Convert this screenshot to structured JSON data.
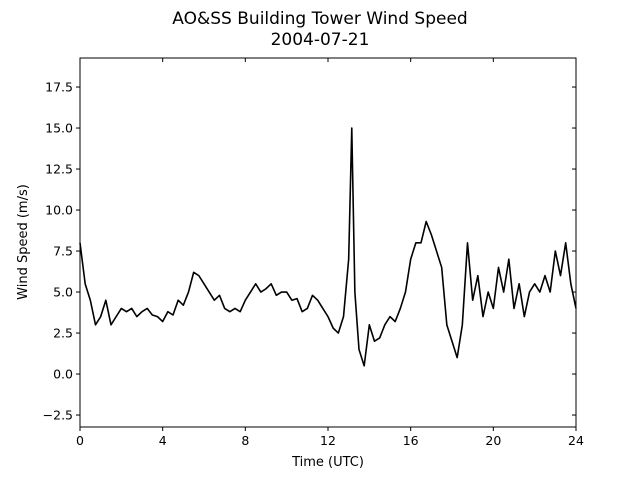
{
  "chart_data": {
    "type": "line",
    "title": "AO&SS Building Tower Wind Speed",
    "subtitle": "2004-07-21",
    "x_label": "Time (UTC)",
    "y_label": "Wind Speed (m/s)",
    "xlim": [
      0,
      24
    ],
    "xticks": [
      0,
      4,
      8,
      12,
      16,
      20,
      24
    ],
    "ylim": [
      -3.23,
      19.27
    ],
    "yticks": [
      {
        "value": -2.5,
        "label": "−2.5"
      },
      {
        "value": 0,
        "label": "0.0"
      },
      {
        "value": 2.5,
        "label": "2.5"
      },
      {
        "value": 5,
        "label": "5.0"
      },
      {
        "value": 7.5,
        "label": "7.5"
      },
      {
        "value": 10,
        "label": "10.0"
      },
      {
        "value": 12.5,
        "label": "12.5"
      },
      {
        "value": 15,
        "label": "15.0"
      },
      {
        "value": 17.5,
        "label": "17.5"
      }
    ],
    "grid": false,
    "x": [
      0,
      0.25,
      0.5,
      0.75,
      1.0,
      1.25,
      1.5,
      1.75,
      2.0,
      2.25,
      2.5,
      2.75,
      3.0,
      3.25,
      3.5,
      3.75,
      4.0,
      4.25,
      4.5,
      4.75,
      5.0,
      5.25,
      5.5,
      5.75,
      6.0,
      6.25,
      6.5,
      6.75,
      7.0,
      7.25,
      7.5,
      7.75,
      8.0,
      8.25,
      8.5,
      8.75,
      9.0,
      9.25,
      9.5,
      9.75,
      10.0,
      10.25,
      10.5,
      10.75,
      11.0,
      11.25,
      11.5,
      11.75,
      12.0,
      12.25,
      12.5,
      12.75,
      13.0,
      13.15,
      13.3,
      13.5,
      13.75,
      14.0,
      14.25,
      14.5,
      14.75,
      15.0,
      15.25,
      15.5,
      15.75,
      16.0,
      16.25,
      16.5,
      16.75,
      17.0,
      17.25,
      17.5,
      17.75,
      18.0,
      18.25,
      18.5,
      18.75,
      19.0,
      19.25,
      19.5,
      19.75,
      20.0,
      20.25,
      20.5,
      20.75,
      21.0,
      21.25,
      21.5,
      21.75,
      22.0,
      22.25,
      22.5,
      22.75,
      23.0,
      23.25,
      23.5,
      23.75,
      24.0
    ],
    "series": [
      {
        "name": "Wind Speed",
        "color": "#000000",
        "values": [
          8.0,
          5.5,
          4.5,
          3.0,
          3.5,
          4.5,
          3.0,
          3.5,
          4.0,
          3.8,
          4.0,
          3.5,
          3.8,
          4.0,
          3.6,
          3.5,
          3.2,
          3.8,
          3.6,
          4.5,
          4.2,
          5.0,
          6.2,
          6.0,
          5.5,
          5.0,
          4.5,
          4.8,
          4.0,
          3.8,
          4.0,
          3.8,
          4.5,
          5.0,
          5.5,
          5.0,
          5.2,
          5.5,
          4.8,
          5.0,
          5.0,
          4.5,
          4.6,
          3.8,
          4.0,
          4.8,
          4.5,
          4.0,
          3.5,
          2.8,
          2.5,
          3.5,
          7.0,
          15.0,
          5.0,
          1.5,
          0.5,
          3.0,
          2.0,
          2.2,
          3.0,
          3.5,
          3.2,
          4.0,
          5.0,
          7.0,
          8.0,
          8.0,
          9.3,
          8.5,
          7.5,
          6.5,
          3.0,
          2.0,
          1.0,
          3.0,
          8.0,
          4.5,
          6.0,
          3.5,
          5.0,
          4.0,
          6.5,
          5.0,
          7.0,
          4.0,
          5.5,
          3.5,
          5.0,
          5.5,
          5.0,
          6.0,
          5.0,
          7.5,
          6.0,
          8.0,
          5.5,
          4.0
        ]
      }
    ]
  }
}
